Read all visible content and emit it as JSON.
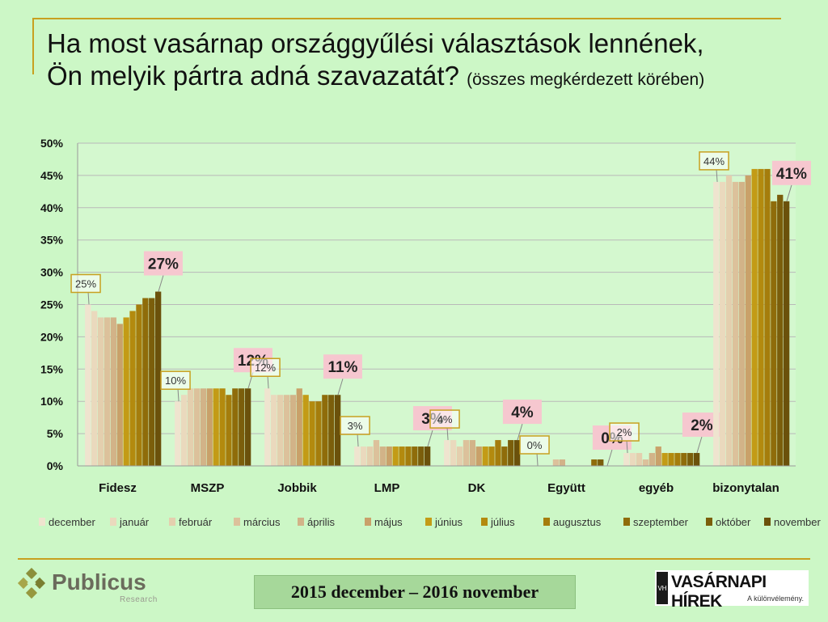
{
  "title": {
    "line1": "Ha most vasárnap országgyűlési választások lennének,",
    "line2_main": "Ön melyik pártra adná szavazatát?",
    "line2_sub": "(összes megkérdezett körében)"
  },
  "footer": {
    "period": "2015 december – 2016 november",
    "left_logo": "Publicus",
    "left_logo_sub": "Research",
    "right_logo": "VASÁRNAPI HÍREK",
    "right_logo_tag": "A különvélemény.",
    "right_logo_mark": "VH"
  },
  "colors": {
    "background": "#ccf7c6",
    "rule": "#c8a020",
    "first_label_border": "#c8a020",
    "last_label_fill": "#f6c7cf",
    "series": [
      "#efe4cf",
      "#ead9bd",
      "#e4cfae",
      "#dcc19b",
      "#d2b388",
      "#c9a16a",
      "#c39b16",
      "#b38a0e",
      "#a57d0c",
      "#8f6c0a",
      "#7b5e0b",
      "#6b510b"
    ]
  },
  "chart_data": {
    "type": "bar",
    "categories": [
      "Fidesz",
      "MSZP",
      "Jobbik",
      "LMP",
      "DK",
      "Együtt",
      "egyéb",
      "bizonytalan"
    ],
    "series": [
      {
        "name": "december",
        "values": [
          25,
          10,
          12,
          3,
          4,
          0,
          2,
          44
        ]
      },
      {
        "name": "január",
        "values": [
          24,
          11,
          11,
          3,
          4,
          0,
          2,
          44
        ]
      },
      {
        "name": "február",
        "values": [
          23,
          12,
          11,
          3,
          3,
          0,
          2,
          45
        ]
      },
      {
        "name": "március",
        "values": [
          23,
          12,
          11,
          4,
          4,
          1,
          1,
          44
        ]
      },
      {
        "name": "április",
        "values": [
          23,
          12,
          11,
          3,
          4,
          1,
          2,
          44
        ]
      },
      {
        "name": "május",
        "values": [
          22,
          12,
          12,
          3,
          3,
          0,
          3,
          45
        ]
      },
      {
        "name": "június",
        "values": [
          23,
          12,
          11,
          3,
          3,
          0,
          2,
          46
        ]
      },
      {
        "name": "július",
        "values": [
          24,
          12,
          10,
          3,
          3,
          0,
          2,
          46
        ]
      },
      {
        "name": "augusztus",
        "values": [
          25,
          11,
          10,
          3,
          4,
          0,
          2,
          46
        ]
      },
      {
        "name": "szeptember",
        "values": [
          26,
          12,
          11,
          3,
          3,
          1,
          2,
          41
        ]
      },
      {
        "name": "október",
        "values": [
          26,
          12,
          11,
          3,
          4,
          1,
          2,
          42
        ]
      },
      {
        "name": "november",
        "values": [
          27,
          12,
          11,
          3,
          4,
          0,
          2,
          41
        ]
      }
    ],
    "first_labels": [
      "25%",
      "10%",
      "12%",
      "3%",
      "4%",
      "0%",
      "2%",
      "44%"
    ],
    "last_labels": [
      "27%",
      "12%",
      "11%",
      "3%",
      "4%",
      "0%",
      "2%",
      "41%"
    ],
    "ylim": [
      0,
      50
    ],
    "y_ticks": [
      "0%",
      "5%",
      "10%",
      "15%",
      "20%",
      "25%",
      "30%",
      "35%",
      "40%",
      "45%",
      "50%"
    ],
    "grid": true,
    "legend_position": "bottom"
  }
}
